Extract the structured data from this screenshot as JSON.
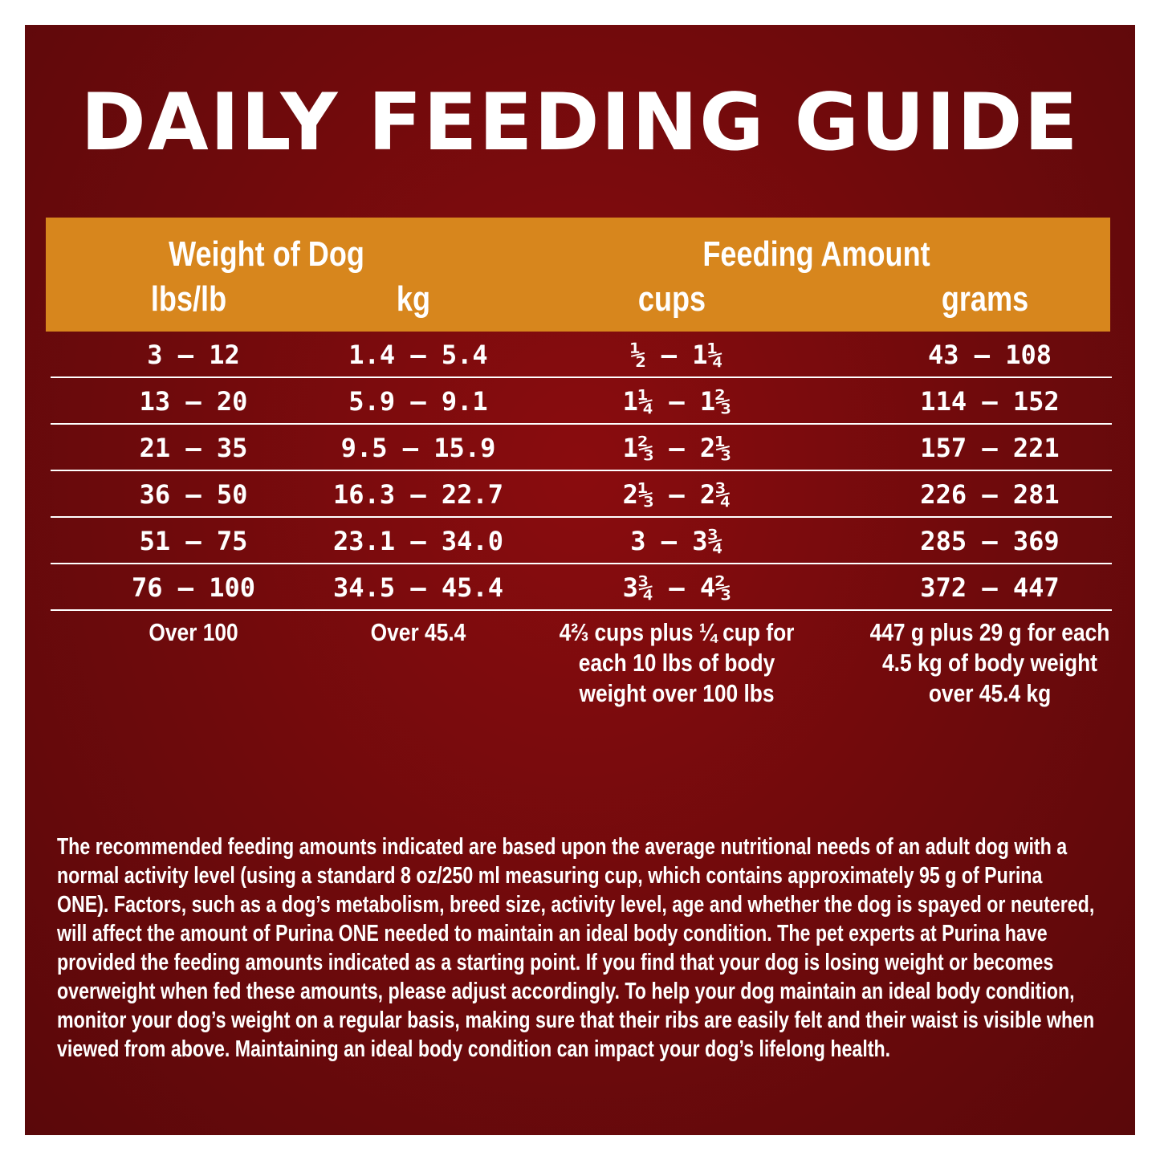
{
  "title": "DAILY FEEDING GUIDE",
  "header": {
    "weight_group": "Weight of Dog",
    "feeding_group": "Feeding Amount",
    "columns": [
      "lbs/lb",
      "kg",
      "cups",
      "grams"
    ]
  },
  "rows": [
    [
      "3 – 12",
      "1.4 – 5.4",
      "½ – 1¼",
      "43 – 108"
    ],
    [
      "13 – 20",
      "5.9 – 9.1",
      "1¼ – 1⅔",
      "114 – 152"
    ],
    [
      "21 – 35",
      "9.5 – 15.9",
      "1⅔ – 2⅓",
      "157 – 221"
    ],
    [
      "36 – 50",
      "16.3 – 22.7",
      "2⅓ – 2¾",
      "226 – 281"
    ],
    [
      "51 – 75",
      "23.1 – 34.0",
      "3 – 3¾",
      "285 – 369"
    ],
    [
      "76 – 100",
      "34.5 – 45.4",
      "3¾ – 4⅔",
      "372 – 447"
    ]
  ],
  "last_row": {
    "lbs": "Over 100",
    "kg": "Over 45.4",
    "cups": "4⅔ cups plus ¼ cup for each 10 lbs of body weight over 100 lbs",
    "grams": "447 g plus 29 g for each 4.5 kg of body weight over 45.4 kg"
  },
  "note": "The recommended feeding amounts indicated are based upon the average nutritional needs of an adult dog with a normal activity level (using a standard 8 oz/250 ml measuring cup, which contains approximately 95 g of Purina ONE). Factors, such as a dog’s metabolism, breed size, activity level, age and whether the dog is spayed or neutered, will affect the amount of Purina ONE needed to maintain an ideal body condition. The pet experts at Purina have provided the feeding amounts indicated as a starting point. If you find that your dog is losing weight or becomes overweight when fed these amounts, please adjust accordingly. To help your dog maintain an ideal body condition, monitor your dog’s weight on a regular basis, making sure that their ribs are easily felt and their waist is visible when viewed from above. Maintaining an ideal body condition can impact your dog’s lifelong health."
}
